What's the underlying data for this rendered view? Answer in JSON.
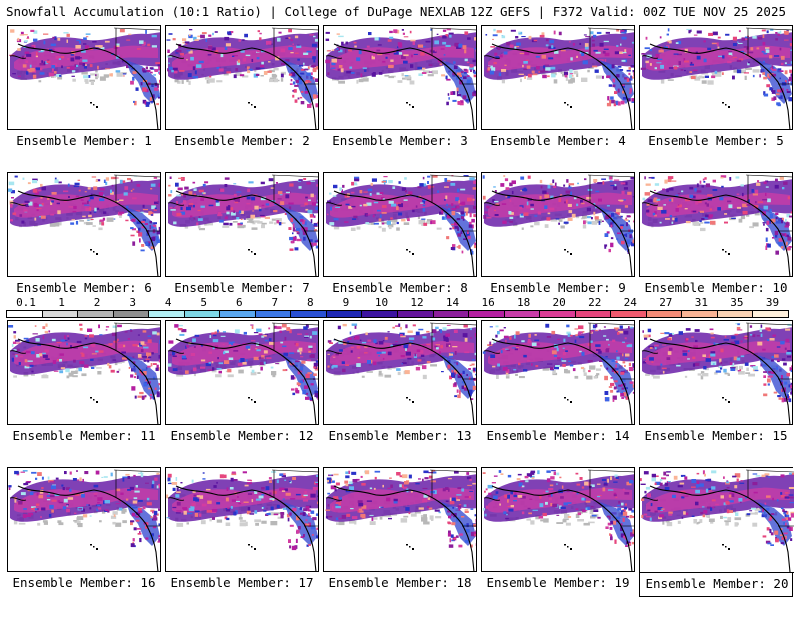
{
  "header": {
    "title_left": "Snowfall Accumulation (10:1 Ratio) | College of DuPage NEXLAB",
    "title_right": "12Z GEFS | F372 Valid: 00Z TUE NOV 25 2025"
  },
  "panels": [
    {
      "label": "Ensemble Member: 1"
    },
    {
      "label": "Ensemble Member: 2"
    },
    {
      "label": "Ensemble Member: 3"
    },
    {
      "label": "Ensemble Member: 4"
    },
    {
      "label": "Ensemble Member: 5"
    },
    {
      "label": "Ensemble Member: 6"
    },
    {
      "label": "Ensemble Member: 7"
    },
    {
      "label": "Ensemble Member: 8"
    },
    {
      "label": "Ensemble Member: 9"
    },
    {
      "label": "Ensemble Member: 10"
    },
    {
      "label": "Ensemble Member: 11"
    },
    {
      "label": "Ensemble Member: 12"
    },
    {
      "label": "Ensemble Member: 13"
    },
    {
      "label": "Ensemble Member: 14"
    },
    {
      "label": "Ensemble Member: 15"
    },
    {
      "label": "Ensemble Member: 16"
    },
    {
      "label": "Ensemble Member: 17"
    },
    {
      "label": "Ensemble Member: 18"
    },
    {
      "label": "Ensemble Member: 19"
    },
    {
      "label": "Ensemble Member: 20"
    }
  ],
  "colorbar": {
    "labels": [
      "0.1",
      "1",
      "2",
      "3",
      "4",
      "5",
      "6",
      "7",
      "8",
      "9",
      "10",
      "12",
      "14",
      "16",
      "18",
      "20",
      "22",
      "24",
      "27",
      "31",
      "35",
      "39"
    ],
    "colors": [
      "#ffffff",
      "#d9d9d9",
      "#b5b5b5",
      "#8f8f8f",
      "#b3f0f5",
      "#7fd8e6",
      "#5aa8f0",
      "#3c78e6",
      "#2a50d2",
      "#1e28b4",
      "#3c14a0",
      "#64149b",
      "#8c1e9b",
      "#b41ea0",
      "#c83ca8",
      "#dc3c96",
      "#e6467d",
      "#f05a6e",
      "#f58c78",
      "#fab496",
      "#fad2b4",
      "#fff0dc"
    ]
  }
}
